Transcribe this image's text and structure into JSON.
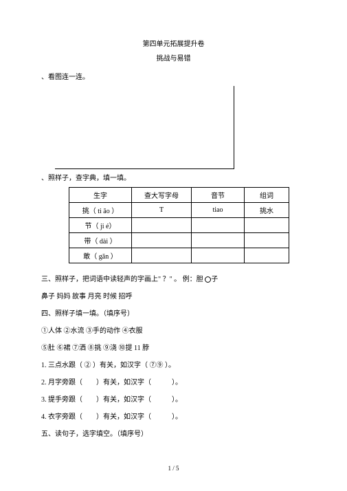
{
  "title": "第四单元拓展提升卷",
  "subtitle": "挑战与易错",
  "sec1_label": "、看图连一连。",
  "sec2_label": "、照样子，查字典，填一填。",
  "table": {
    "headers": [
      "生字",
      "查大写字母",
      "音节",
      "组词"
    ],
    "rows": [
      [
        "挑（ ti āo ）",
        "T",
        "tiao",
        "挑水"
      ],
      [
        "节（ ji é）",
        "",
        "",
        ""
      ],
      [
        "带（ dài ）",
        "",
        "",
        ""
      ],
      [
        "敢（ gǎn ）",
        "",
        "",
        ""
      ]
    ]
  },
  "body": {
    "l1a": "三、照样子，把词语中读轻声的字画上\" ",
    "l1b": "？",
    "l1c": "\" 。  例：胆 ",
    "l1d": "子",
    "l2": "鼻子 妈妈 故事 月亮 时候 招呼",
    "l3": "四、照样子填一填。（填序号）",
    "l4": "①人体 ②水流 ③手的动作 ④衣服",
    "l5": "⑤肚 ⑥裙 ⑦洒 ⑧挑 ⑨浇 ⑩提  11 脖",
    "l6": "1.  三点水跟（ ② ）有关，如汉字（ ⑦⑨ ）。",
    "l7": "2.  月字旁跟（  ）有关，如汉字（   ）。",
    "l8": "3.  提手旁跟（  ）有关，如汉字（   ）。",
    "l9": "4.  衣字旁跟（  ）有关，如汉字（   ）。",
    "l10": "五、读句子，选字填空。（填序号）"
  },
  "footer": "1 / 5"
}
